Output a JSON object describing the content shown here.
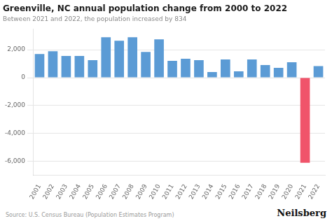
{
  "chart_data": {
    "type": "bar",
    "title": "Greenville, NC annual population change from 2000 to 2022",
    "subtitle": "Between 2021 and 2022, the population increased by 834",
    "annotations": [
      "Source: U.S. Census Bureau (Population Estimates Program)",
      "Neilsberg"
    ],
    "categories": [
      "2001",
      "2002",
      "2003",
      "2004",
      "2005",
      "2006",
      "2007",
      "2008",
      "2009",
      "2010",
      "2011",
      "2012",
      "2013",
      "2014",
      "2015",
      "2016",
      "2017",
      "2018",
      "2019",
      "2020",
      "2021",
      "2022"
    ],
    "values": [
      1700,
      1900,
      1550,
      1550,
      1250,
      2900,
      2650,
      2900,
      1850,
      2750,
      1200,
      1350,
      1250,
      400,
      1300,
      450,
      1300,
      900,
      700,
      1100,
      -6100,
      834
    ],
    "colors": [
      "#5b9bd5",
      "#5b9bd5",
      "#5b9bd5",
      "#5b9bd5",
      "#5b9bd5",
      "#5b9bd5",
      "#5b9bd5",
      "#5b9bd5",
      "#5b9bd5",
      "#5b9bd5",
      "#5b9bd5",
      "#5b9bd5",
      "#5b9bd5",
      "#5b9bd5",
      "#5b9bd5",
      "#5b9bd5",
      "#5b9bd5",
      "#5b9bd5",
      "#5b9bd5",
      "#5b9bd5",
      "#f0546a",
      "#5b9bd5"
    ],
    "ylim": [
      -7000,
      3500
    ],
    "yticks": [
      {
        "value": -6000,
        "label": "-6,000"
      },
      {
        "value": -4000,
        "label": "-4,000"
      },
      {
        "value": -2000,
        "label": "-2,000"
      },
      0,
      {
        "value": 2000,
        "label": "2,000"
      }
    ],
    "grid": true
  }
}
